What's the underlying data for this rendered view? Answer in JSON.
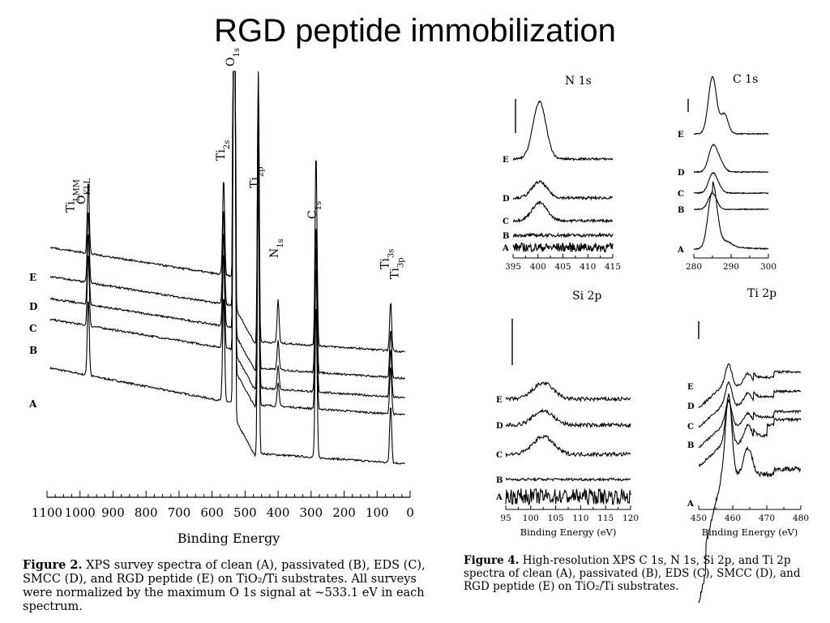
{
  "slide": {
    "title": "RGD peptide immobilization"
  },
  "figure2": {
    "caption_label": "Figure 2.",
    "caption_text": "XPS survey spectra of clean (A), passivated (B), EDS (C), SMCC (D), and RGD peptide (E) on TiO₂/Ti substrates. All surveys were normalized by the maximum O 1s signal at ∼533.1 eV in each spectrum."
  },
  "figure4": {
    "caption_label": "Figure 4.",
    "caption_text": "High-resolution XPS C 1s, N 1s, Si 2p, and Ti 2p spectra of clean (A), passivated (B), EDS (C), SMCC (D), and RGD peptide (E) on TiO₂/Ti substrates."
  },
  "chart_data": [
    {
      "id": "survey",
      "type": "line",
      "xlabel": "Binding Energy",
      "x_reversed": true,
      "xlim": [
        1100,
        0
      ],
      "xticks": [
        1100,
        1000,
        900,
        800,
        700,
        600,
        500,
        400,
        300,
        200,
        100,
        0
      ],
      "series": [
        {
          "name": "A",
          "offset": 0.0,
          "base": 1.55,
          "slope": 0.72,
          "peaks": [
            [
              533,
              40
            ],
            [
              460,
              6
            ],
            [
              285,
              3.2
            ],
            [
              975,
              1.6
            ],
            [
              565,
              2.2
            ],
            [
              59,
              1.2
            ]
          ]
        },
        {
          "name": "B",
          "offset": 1.0,
          "base": 1.65,
          "slope": 0.62,
          "peaks": [
            [
              533,
              40
            ],
            [
              460,
              6
            ],
            [
              285,
              3.0
            ],
            [
              400,
              0.5
            ],
            [
              975,
              1.5
            ],
            [
              565,
              2.0
            ],
            [
              59,
              1.0
            ]
          ]
        },
        {
          "name": "C",
          "offset": 1.35,
          "base": 1.75,
          "slope": 0.6,
          "peaks": [
            [
              533,
              40
            ],
            [
              460,
              6
            ],
            [
              285,
              3.1
            ],
            [
              400,
              0.5
            ],
            [
              975,
              1.5
            ],
            [
              565,
              2.0
            ],
            [
              59,
              1.0
            ]
          ]
        },
        {
          "name": "D",
          "offset": 1.75,
          "base": 1.8,
          "slope": 0.6,
          "peaks": [
            [
              533,
              40
            ],
            [
              460,
              6
            ],
            [
              285,
              3.1
            ],
            [
              400,
              0.6
            ],
            [
              975,
              1.5
            ],
            [
              565,
              2.0
            ],
            [
              59,
              1.0
            ]
          ]
        },
        {
          "name": "E",
          "offset": 2.3,
          "base": 1.85,
          "slope": 0.6,
          "peaks": [
            [
              533,
              40
            ],
            [
              460,
              6
            ],
            [
              285,
              4.0
            ],
            [
              400,
              0.9
            ],
            [
              975,
              1.5
            ],
            [
              565,
              2.0
            ],
            [
              59,
              1.0
            ]
          ]
        }
      ],
      "annotations": [
        {
          "text": "O",
          "sub": "1s",
          "x": 533
        },
        {
          "text": "Ti",
          "sub": "2s",
          "x": 562
        },
        {
          "text": "Ti",
          "sub": "2p",
          "x": 460
        },
        {
          "text": "N",
          "sub": "1s",
          "x": 400
        },
        {
          "text": "C",
          "sub": "1s",
          "x": 285
        },
        {
          "text": "Ti",
          "sub": "LMM",
          "x": 1018
        },
        {
          "text": "O",
          "sub": "KLL",
          "x": 985
        },
        {
          "text": "Ti",
          "sub": "3s",
          "x": 65
        },
        {
          "text": "Ti",
          "sub": "3p",
          "x": 36
        }
      ]
    },
    {
      "id": "n1s",
      "type": "line",
      "title": "N 1s",
      "xlim": [
        395,
        415
      ],
      "xticks": [
        395,
        400,
        405,
        410,
        415
      ],
      "series": [
        {
          "name": "A",
          "peak": [
            400.3,
            0.0,
            1.3
          ]
        },
        {
          "name": "B",
          "peak": [
            400.3,
            0.0,
            1.3
          ]
        },
        {
          "name": "C",
          "peak": [
            400.3,
            1.0,
            1.5
          ]
        },
        {
          "name": "D",
          "peak": [
            400.3,
            0.9,
            1.5
          ]
        },
        {
          "name": "E",
          "peak": [
            400.3,
            3.2,
            1.3
          ]
        }
      ]
    },
    {
      "id": "c1s",
      "type": "line",
      "title": "C 1s",
      "xlim": [
        280,
        300
      ],
      "xticks": [
        280,
        290,
        300
      ],
      "series": [
        {
          "name": "A",
          "peaks": [
            [
              285,
              3.2,
              1.2
            ],
            [
              289,
              0.2,
              1.2
            ]
          ]
        },
        {
          "name": "B",
          "peaks": [
            [
              285,
              0.9,
              1.1
            ]
          ]
        },
        {
          "name": "C",
          "peaks": [
            [
              285,
              1.0,
              1.1
            ],
            [
              286.5,
              0.3,
              1.1
            ]
          ]
        },
        {
          "name": "D",
          "peaks": [
            [
              285,
              1.3,
              1.1
            ],
            [
              286.8,
              0.6,
              1.2
            ]
          ]
        },
        {
          "name": "E",
          "peaks": [
            [
              285,
              3.2,
              1.1
            ],
            [
              288.2,
              1.1,
              1.0
            ]
          ]
        }
      ]
    },
    {
      "id": "si2p",
      "type": "line",
      "title": "Si 2p",
      "xlabel": "Binding Energy (eV)",
      "xlim": [
        95,
        120
      ],
      "xticks": [
        95,
        100,
        105,
        110,
        115,
        120
      ],
      "series": [
        {
          "name": "A",
          "peak": [
            102.5,
            0.0,
            2.0
          ]
        },
        {
          "name": "B",
          "peak": [
            102.5,
            0.0,
            2.0
          ]
        },
        {
          "name": "C",
          "peak": [
            102.5,
            1.0,
            2.0
          ]
        },
        {
          "name": "D",
          "peak": [
            102.5,
            0.8,
            2.0
          ]
        },
        {
          "name": "E",
          "peak": [
            102.5,
            0.9,
            2.0
          ]
        }
      ]
    },
    {
      "id": "ti2p",
      "type": "line",
      "title": "Ti 2p",
      "xlabel": "Binding Energy (eV)",
      "xlim": [
        450,
        480
      ],
      "xticks": [
        450,
        460,
        470,
        480
      ],
      "series": [
        {
          "name": "A",
          "peaks": [
            [
              458.8,
              9.0,
              0.9
            ],
            [
              464.5,
              3.0,
              1.2
            ]
          ]
        },
        {
          "name": "B",
          "peaks": [
            [
              458.8,
              5.0,
              0.9
            ],
            [
              464.5,
              2.2,
              1.2
            ]
          ]
        },
        {
          "name": "C",
          "peaks": [
            [
              458.8,
              2.8,
              0.9
            ],
            [
              464.5,
              1.4,
              1.2
            ]
          ]
        },
        {
          "name": "D",
          "peaks": [
            [
              458.8,
              2.6,
              0.9
            ],
            [
              464.5,
              1.4,
              1.2
            ]
          ]
        },
        {
          "name": "E",
          "peaks": [
            [
              458.8,
              2.5,
              0.9
            ],
            [
              464.5,
              1.4,
              1.2
            ]
          ]
        }
      ]
    }
  ]
}
